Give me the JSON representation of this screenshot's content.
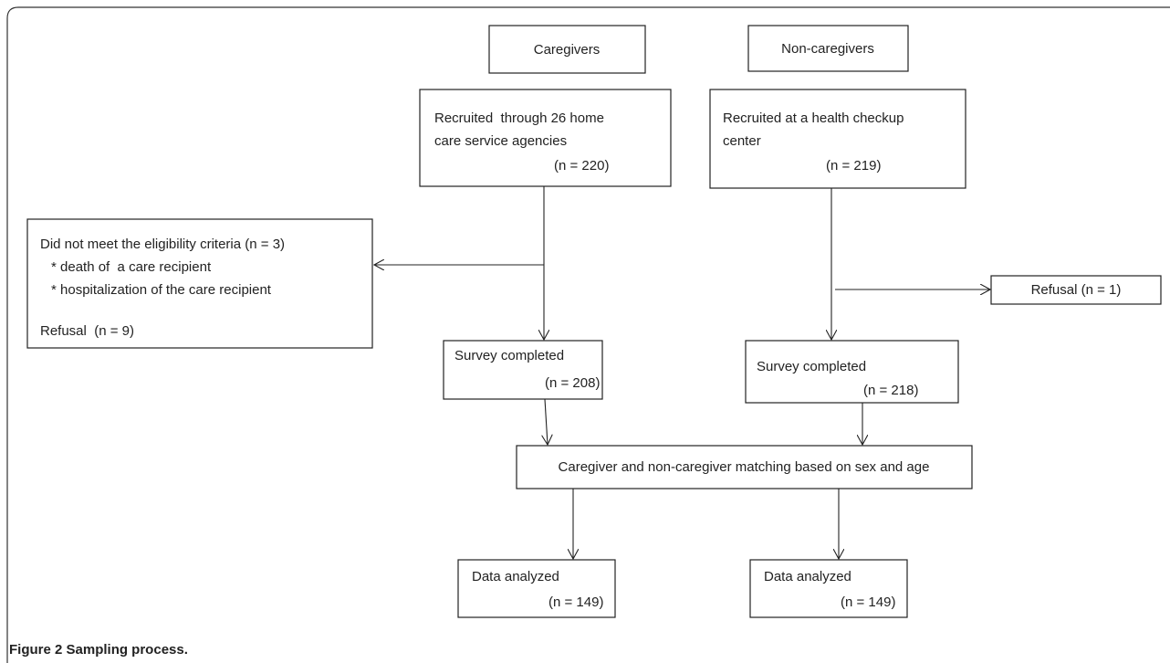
{
  "nodes": [
    {
      "lines": [
        "Caregivers"
      ]
    },
    {
      "lines": [
        "Non-caregivers"
      ]
    },
    {
      "lines": [
        "Recruited  through 26 home",
        "care service agencies",
        "(n = 220)"
      ]
    },
    {
      "lines": [
        "Recruited at a health checkup",
        "center",
        "(n = 219)"
      ]
    },
    {
      "lines": [
        "Did not meet the eligibility criteria (n = 3)",
        "* death of  a care recipient",
        "* hospitalization of the care recipient",
        "Refusal  (n = 9)"
      ]
    },
    {
      "lines": [
        "Refusal (n = 1)"
      ]
    },
    {
      "lines": [
        "Survey completed",
        "(n = 208)"
      ]
    },
    {
      "lines": [
        "Survey completed",
        "(n = 218)"
      ]
    },
    {
      "lines": [
        "Caregiver and non-caregiver matching based on sex and age"
      ]
    },
    {
      "lines": [
        "Data analyzed",
        "(n = 149)"
      ]
    },
    {
      "lines": [
        "Data analyzed",
        "(n = 149)"
      ]
    }
  ],
  "caption": "Figure 2 Sampling process."
}
